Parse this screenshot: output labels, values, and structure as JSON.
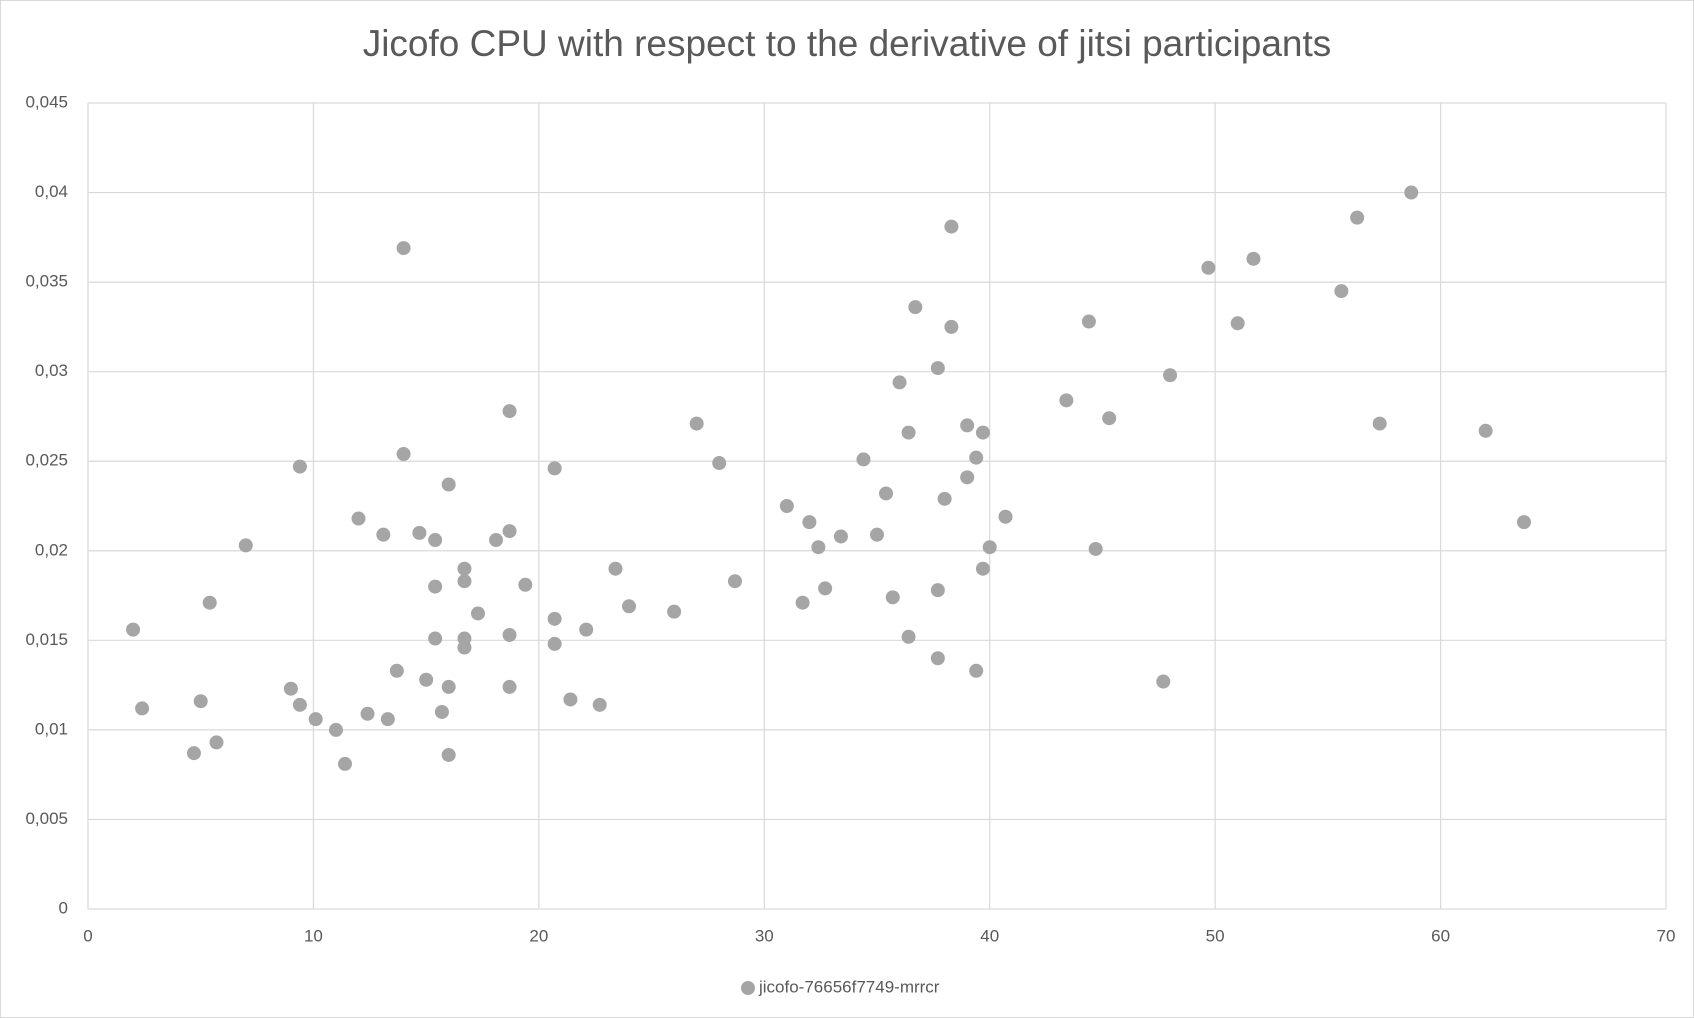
{
  "chart_data": {
    "type": "scatter",
    "title": "Jicofo CPU with respect to the derivative of jitsi participants",
    "series": [
      {
        "name": "jicofo-76656f7749-mrrcr",
        "color": "#a5a5a5",
        "x": [
          2.0,
          2.4,
          4.7,
          5.0,
          5.4,
          5.7,
          7.0,
          9.0,
          9.4,
          9.4,
          10.1,
          11.0,
          11.4,
          12.0,
          12.4,
          13.1,
          13.3,
          13.7,
          14.0,
          14.0,
          14.7,
          15.0,
          15.4,
          15.4,
          15.4,
          15.7,
          16.0,
          16.0,
          16.0,
          16.7,
          16.7,
          16.7,
          16.7,
          17.3,
          18.1,
          18.7,
          18.7,
          18.7,
          18.7,
          19.4,
          20.7,
          20.7,
          20.7,
          21.4,
          22.1,
          22.7,
          23.4,
          24.0,
          26.0,
          27.0,
          28.0,
          28.7,
          31.0,
          31.7,
          32.0,
          32.4,
          32.7,
          33.4,
          34.4,
          35.0,
          35.4,
          35.7,
          36.0,
          36.4,
          36.4,
          36.7,
          37.7,
          37.7,
          37.7,
          38.0,
          38.3,
          38.3,
          39.0,
          39.0,
          39.4,
          39.4,
          39.7,
          39.7,
          40.0,
          40.7,
          43.4,
          44.4,
          44.7,
          45.3,
          47.7,
          48.0,
          49.7,
          51.0,
          51.7,
          55.6,
          56.3,
          57.3,
          58.7,
          62.0,
          63.7
        ],
        "values": [
          0.0156,
          0.0112,
          0.0087,
          0.0116,
          0.0171,
          0.0093,
          0.0203,
          0.0123,
          0.0114,
          0.0247,
          0.0106,
          0.01,
          0.0081,
          0.0218,
          0.0109,
          0.0209,
          0.0106,
          0.0133,
          0.0369,
          0.0254,
          0.021,
          0.0128,
          0.0206,
          0.018,
          0.0151,
          0.011,
          0.0237,
          0.0124,
          0.0086,
          0.019,
          0.0183,
          0.0151,
          0.0146,
          0.0165,
          0.0206,
          0.0278,
          0.0211,
          0.0153,
          0.0124,
          0.0181,
          0.0246,
          0.0162,
          0.0148,
          0.0117,
          0.0156,
          0.0114,
          0.019,
          0.0169,
          0.0166,
          0.0271,
          0.0249,
          0.0183,
          0.0225,
          0.0171,
          0.0216,
          0.0202,
          0.0179,
          0.0208,
          0.0251,
          0.0209,
          0.0232,
          0.0174,
          0.0294,
          0.0266,
          0.0152,
          0.0336,
          0.0178,
          0.014,
          0.0302,
          0.0229,
          0.0381,
          0.0325,
          0.027,
          0.0241,
          0.0252,
          0.0133,
          0.0266,
          0.019,
          0.0202,
          0.0219,
          0.0284,
          0.0328,
          0.0201,
          0.0274,
          0.0127,
          0.0298,
          0.0358,
          0.0327,
          0.0363,
          0.0345,
          0.0386,
          0.0271,
          0.04,
          0.0267,
          0.0216
        ]
      }
    ],
    "xlim": [
      0,
      70
    ],
    "xticks": [
      0,
      10,
      20,
      30,
      40,
      50,
      60,
      70
    ],
    "ylim": [
      0,
      0.045
    ],
    "yticks": [
      0,
      {
        "value": 0.005,
        "label": "0,005"
      },
      {
        "value": 0.01,
        "label": "0,01"
      },
      {
        "value": 0.015,
        "label": "0,015"
      },
      {
        "value": 0.02,
        "label": "0,02"
      },
      {
        "value": 0.025,
        "label": "0,025"
      },
      {
        "value": 0.03,
        "label": "0,03"
      },
      {
        "value": 0.035,
        "label": "0,035"
      },
      {
        "value": 0.04,
        "label": "0,04"
      },
      {
        "value": 0.045,
        "label": "0,045"
      }
    ],
    "grid": true,
    "legend": "bottom"
  }
}
